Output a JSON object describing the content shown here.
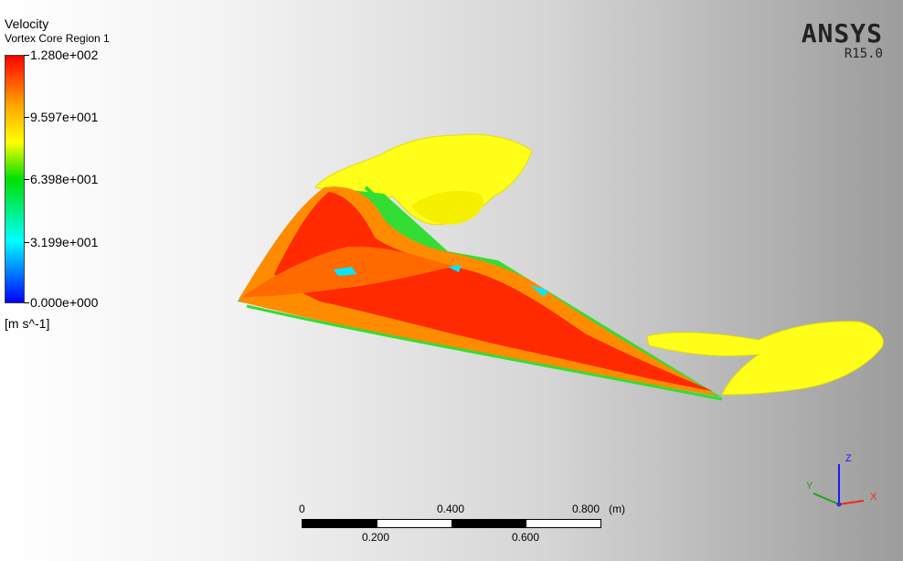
{
  "legend": {
    "title": "Velocity",
    "subtitle": "Vortex Core Region 1",
    "ticks": [
      "1.280e+002",
      "9.597e+001",
      "6.398e+001",
      "3.199e+001",
      "0.000e+000"
    ],
    "units": "[m s^-1]"
  },
  "brand": {
    "name": "ANSYS",
    "version": "R15.0"
  },
  "scale": {
    "top": [
      "0",
      "0.400",
      "0.800"
    ],
    "unit": "(m)",
    "bottom": [
      "0.200",
      "0.600"
    ]
  },
  "triad": {
    "x": "X",
    "y": "Y",
    "z": "Z"
  },
  "colors": {
    "red": "#ff2a00",
    "orange": "#ff8c00",
    "yellow": "#ffff1a",
    "green": "#33dd33",
    "cyan": "#00ffff"
  }
}
